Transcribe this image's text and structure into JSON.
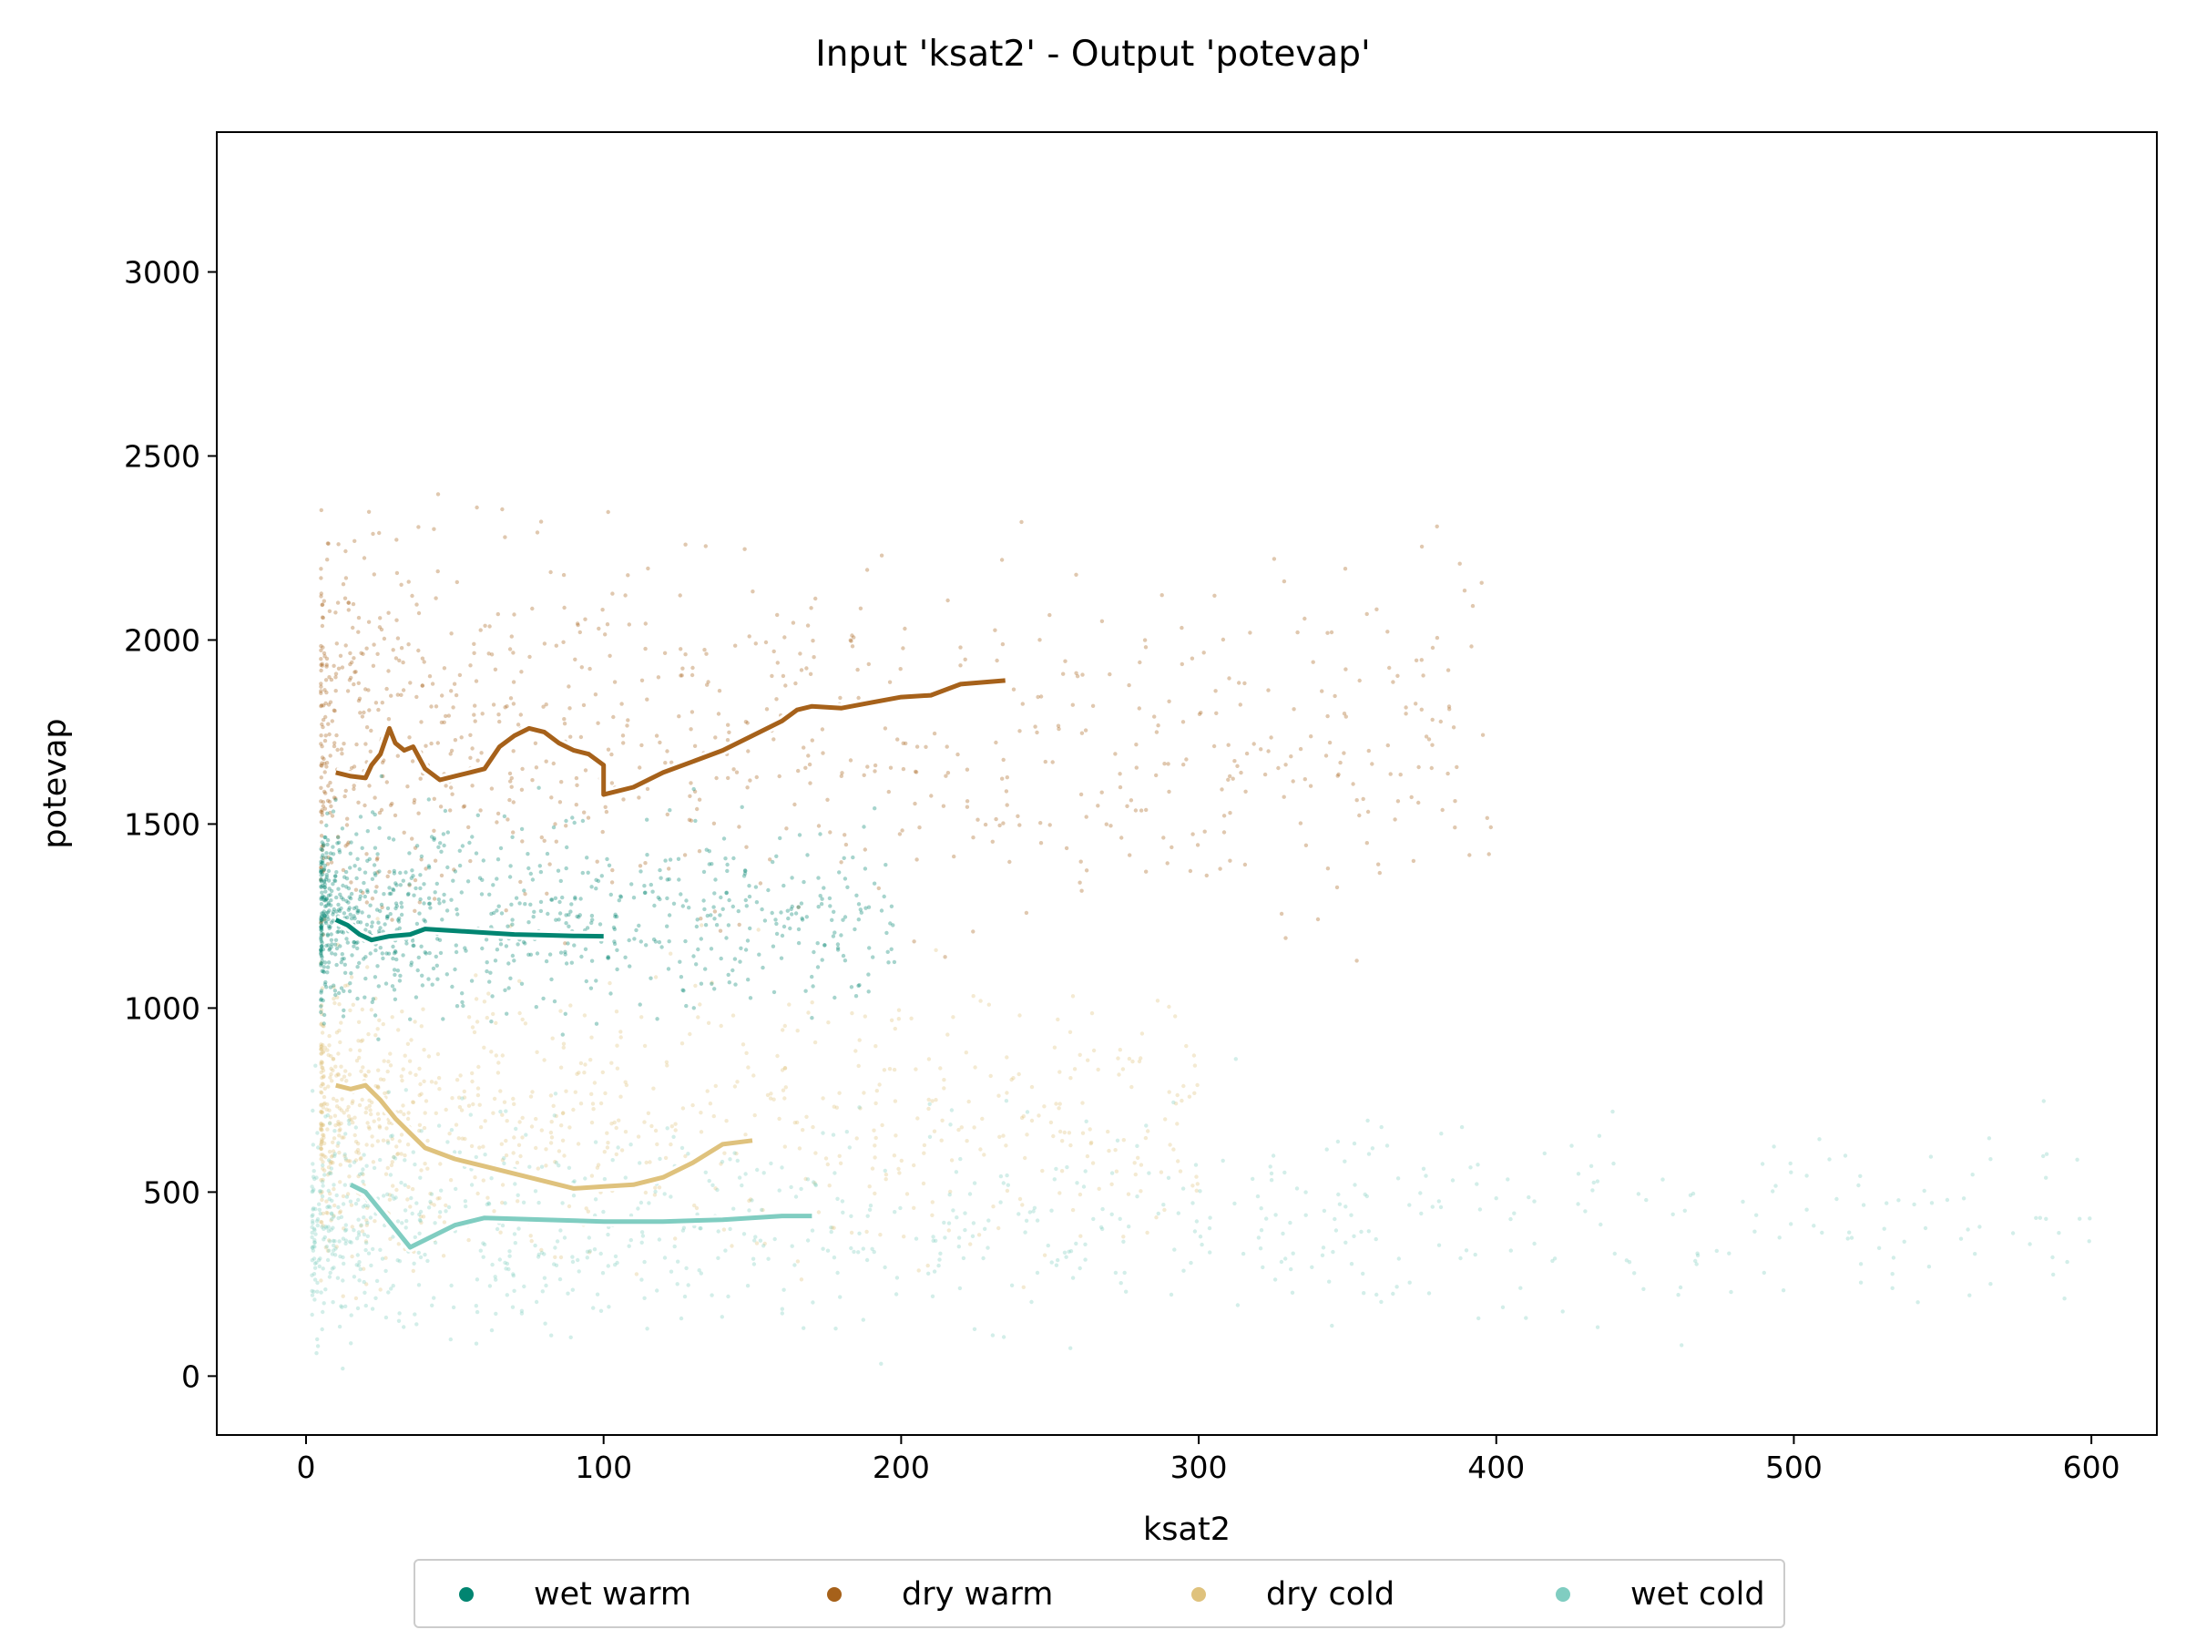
{
  "chart_data": {
    "type": "scatter",
    "title": "Input 'ksat2' - Output 'potevap'",
    "xlabel": "ksat2",
    "ylabel": "potevap",
    "xlim": [
      -30,
      622
    ],
    "ylim": [
      -160,
      3380
    ],
    "xticks": [
      0,
      100,
      200,
      300,
      400,
      500,
      600
    ],
    "yticks": [
      0,
      500,
      1000,
      1500,
      2000,
      2500,
      3000
    ],
    "grid": false,
    "legend_position": "bottom-center",
    "series": [
      {
        "name": "wet warm",
        "color": "#018571",
        "point_cloud": {
          "x_range": [
            5,
            200
          ],
          "y_center": 1250,
          "y_spread": 220
        },
        "trend": [
          [
            10,
            1240
          ],
          [
            14,
            1225
          ],
          [
            18,
            1200
          ],
          [
            22,
            1185
          ],
          [
            28,
            1195
          ],
          [
            35,
            1200
          ],
          [
            40,
            1215
          ],
          [
            50,
            1210
          ],
          [
            60,
            1205
          ],
          [
            70,
            1200
          ],
          [
            80,
            1198
          ],
          [
            90,
            1196
          ],
          [
            100,
            1195
          ]
        ]
      },
      {
        "name": "dry warm",
        "color": "#a6611a",
        "point_cloud": {
          "x_range": [
            5,
            400
          ],
          "y_center": 1750,
          "y_spread": 420
        },
        "trend": [
          [
            10,
            1640
          ],
          [
            15,
            1630
          ],
          [
            20,
            1625
          ],
          [
            22,
            1660
          ],
          [
            25,
            1690
          ],
          [
            28,
            1760
          ],
          [
            30,
            1720
          ],
          [
            33,
            1700
          ],
          [
            36,
            1710
          ],
          [
            40,
            1650
          ],
          [
            45,
            1620
          ],
          [
            50,
            1630
          ],
          [
            55,
            1640
          ],
          [
            60,
            1650
          ],
          [
            65,
            1710
          ],
          [
            70,
            1740
          ],
          [
            75,
            1760
          ],
          [
            80,
            1750
          ],
          [
            85,
            1720
          ],
          [
            90,
            1700
          ],
          [
            95,
            1690
          ],
          [
            100,
            1660
          ],
          [
            100,
            1580
          ],
          [
            110,
            1600
          ],
          [
            120,
            1640
          ],
          [
            130,
            1670
          ],
          [
            140,
            1700
          ],
          [
            150,
            1740
          ],
          [
            160,
            1780
          ],
          [
            165,
            1810
          ],
          [
            170,
            1820
          ],
          [
            180,
            1815
          ],
          [
            190,
            1830
          ],
          [
            200,
            1845
          ],
          [
            210,
            1850
          ],
          [
            220,
            1880
          ],
          [
            235,
            1890
          ]
        ]
      },
      {
        "name": "dry cold",
        "color": "#dfc27d",
        "point_cloud": {
          "x_range": [
            5,
            300
          ],
          "y_center": 700,
          "y_spread": 320
        },
        "trend": [
          [
            10,
            790
          ],
          [
            15,
            780
          ],
          [
            20,
            790
          ],
          [
            25,
            750
          ],
          [
            30,
            700
          ],
          [
            35,
            660
          ],
          [
            40,
            620
          ],
          [
            50,
            590
          ],
          [
            60,
            570
          ],
          [
            70,
            550
          ],
          [
            80,
            530
          ],
          [
            90,
            510
          ],
          [
            100,
            515
          ],
          [
            110,
            520
          ],
          [
            120,
            540
          ],
          [
            130,
            580
          ],
          [
            140,
            630
          ],
          [
            150,
            640
          ]
        ]
      },
      {
        "name": "wet cold",
        "color": "#80cdc1",
        "point_cloud": {
          "x_range": [
            2,
            600
          ],
          "y_center": 420,
          "y_spread": 250
        },
        "trend": [
          [
            15,
            520
          ],
          [
            20,
            500
          ],
          [
            25,
            450
          ],
          [
            30,
            400
          ],
          [
            35,
            350
          ],
          [
            40,
            370
          ],
          [
            50,
            410
          ],
          [
            60,
            430
          ],
          [
            80,
            425
          ],
          [
            100,
            420
          ],
          [
            120,
            420
          ],
          [
            140,
            425
          ],
          [
            160,
            435
          ],
          [
            170,
            435
          ]
        ]
      }
    ]
  }
}
